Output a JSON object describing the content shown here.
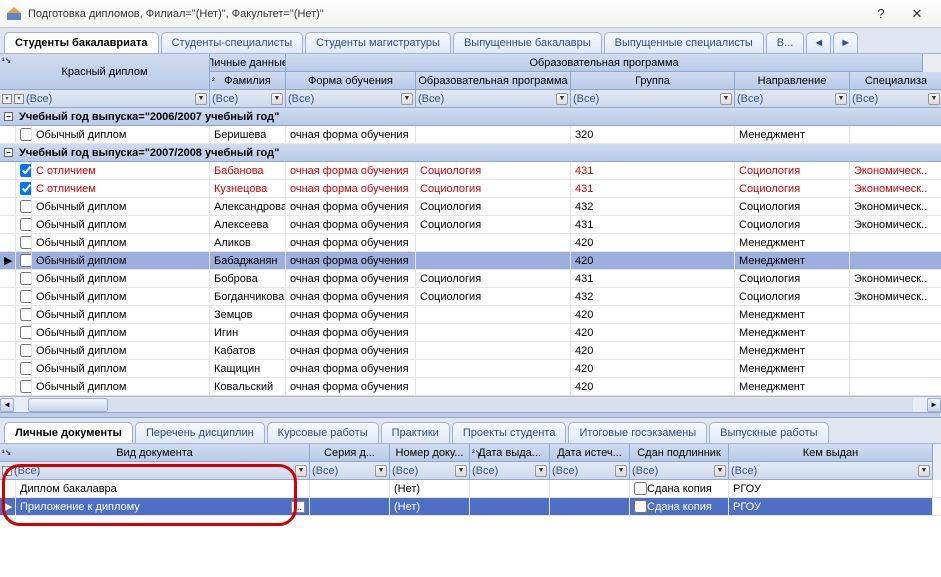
{
  "window": {
    "title": "Подготовка дипломов, Филиал=\"(Нет)\", Факультет=\"(Нет)\""
  },
  "top_tabs": [
    {
      "label": "Студенты бакалавриата",
      "active": true
    },
    {
      "label": "Студенты-специалисты",
      "active": false
    },
    {
      "label": "Студенты магистратуры",
      "active": false
    },
    {
      "label": "Выпущенные бакалавры",
      "active": false
    },
    {
      "label": "Выпущенные специалисты",
      "active": false
    },
    {
      "label": "В...",
      "active": false
    }
  ],
  "corner_band": "Красный диплом",
  "personal_band": "Личные данные",
  "edu_band": "Образовательная программа",
  "columns": {
    "surname": "Фамилия",
    "form": "Форма обучения",
    "program": "Образовательная программа",
    "group": "Группа",
    "direction": "Направление",
    "spec": "Специализа"
  },
  "filter_label": "(Все)",
  "groups": [
    {
      "title": "Учебный год выпуска=\"2006/2007 учебный год\"",
      "rows": [
        {
          "checked": false,
          "diploma": "Обычный диплом",
          "surname": "Беришева",
          "form": "очная форма обучения",
          "program": "",
          "group": "320",
          "direction": "Менеджмент",
          "spec": ""
        }
      ]
    },
    {
      "title": "Учебный год выпуска=\"2007/2008 учебный год\"",
      "rows": [
        {
          "checked": true,
          "red": true,
          "diploma": "С отличием",
          "surname": "Бабанова",
          "form": "очная форма обучения",
          "program": "Социология",
          "group": "431",
          "direction": "Социология",
          "spec": "Экономическ.."
        },
        {
          "checked": true,
          "red": true,
          "diploma": "С отличием",
          "surname": "Кузнецова",
          "form": "очная форма обучения",
          "program": "Социология",
          "group": "431",
          "direction": "Социология",
          "spec": "Экономическ.."
        },
        {
          "checked": false,
          "diploma": "Обычный диплом",
          "surname": "Александрова",
          "form": "очная форма обучения",
          "program": "Социология",
          "group": "432",
          "direction": "Социология",
          "spec": "Экономическ.."
        },
        {
          "checked": false,
          "diploma": "Обычный диплом",
          "surname": "Алексеева",
          "form": "очная форма обучения",
          "program": "Социология",
          "group": "431",
          "direction": "Социология",
          "spec": "Экономическ.."
        },
        {
          "checked": false,
          "diploma": "Обычный диплом",
          "surname": "Аликов",
          "form": "очная форма обучения",
          "program": "",
          "group": "420",
          "direction": "Менеджмент",
          "spec": ""
        },
        {
          "checked": false,
          "sel": true,
          "diploma": "Обычный диплом",
          "surname": "Бабаджанян",
          "form": "очная форма обучения",
          "program": "",
          "group": "420",
          "direction": "Менеджмент",
          "spec": ""
        },
        {
          "checked": false,
          "diploma": "Обычный диплом",
          "surname": "Боброва",
          "form": "очная форма обучения",
          "program": "Социология",
          "group": "431",
          "direction": "Социология",
          "spec": "Экономическ.."
        },
        {
          "checked": false,
          "diploma": "Обычный диплом",
          "surname": "Богданчикова",
          "form": "очная форма обучения",
          "program": "Социология",
          "group": "432",
          "direction": "Социология",
          "spec": "Экономическ.."
        },
        {
          "checked": false,
          "diploma": "Обычный диплом",
          "surname": "Земцов",
          "form": "очная форма обучения",
          "program": "",
          "group": "420",
          "direction": "Менеджмент",
          "spec": ""
        },
        {
          "checked": false,
          "diploma": "Обычный диплом",
          "surname": "Игин",
          "form": "очная форма обучения",
          "program": "",
          "group": "420",
          "direction": "Менеджмент",
          "spec": ""
        },
        {
          "checked": false,
          "diploma": "Обычный диплом",
          "surname": "Кабатов",
          "form": "очная форма обучения",
          "program": "",
          "group": "420",
          "direction": "Менеджмент",
          "spec": ""
        },
        {
          "checked": false,
          "diploma": "Обычный диплом",
          "surname": "Кащицин",
          "form": "очная форма обучения",
          "program": "",
          "group": "420",
          "direction": "Менеджмент",
          "spec": ""
        },
        {
          "checked": false,
          "diploma": "Обычный диплом",
          "surname": "Ковальский",
          "form": "очная форма обучения",
          "program": "",
          "group": "420",
          "direction": "Менеджмент",
          "spec": ""
        }
      ]
    }
  ],
  "bottom_tabs": [
    {
      "label": "Личные документы",
      "active": true
    },
    {
      "label": "Перечень дисциплин",
      "active": false
    },
    {
      "label": "Курсовые работы",
      "active": false
    },
    {
      "label": "Практики",
      "active": false
    },
    {
      "label": "Проекты студента",
      "active": false
    },
    {
      "label": "Итоговые госэкзамены",
      "active": false
    },
    {
      "label": "Выпускные работы",
      "active": false
    }
  ],
  "bcolumns": {
    "doc": "Вид документа",
    "series": "Серия д...",
    "number": "Номер доку...",
    "issued": "Дата выда...",
    "expires": "Дата истеч...",
    "original": "Сдан подлинник",
    "issuer": "Кем выдан"
  },
  "brows": [
    {
      "doc": "Диплом бакалавра",
      "series": "",
      "number": "(Нет)",
      "issued": "",
      "expires": "",
      "original": "Сдана копия",
      "issuer": "РГОУ",
      "sel": false,
      "chk": false
    },
    {
      "doc": "Приложение к диплому",
      "series": "",
      "number": "(Нет)",
      "issued": "",
      "expires": "",
      "original": "Сдана копия",
      "issuer": "РГОУ",
      "sel": true,
      "chk": false
    }
  ],
  "colors": {
    "accent": "#4e6fc6",
    "row_sel": "#9db0dd",
    "red": "#d40000"
  }
}
